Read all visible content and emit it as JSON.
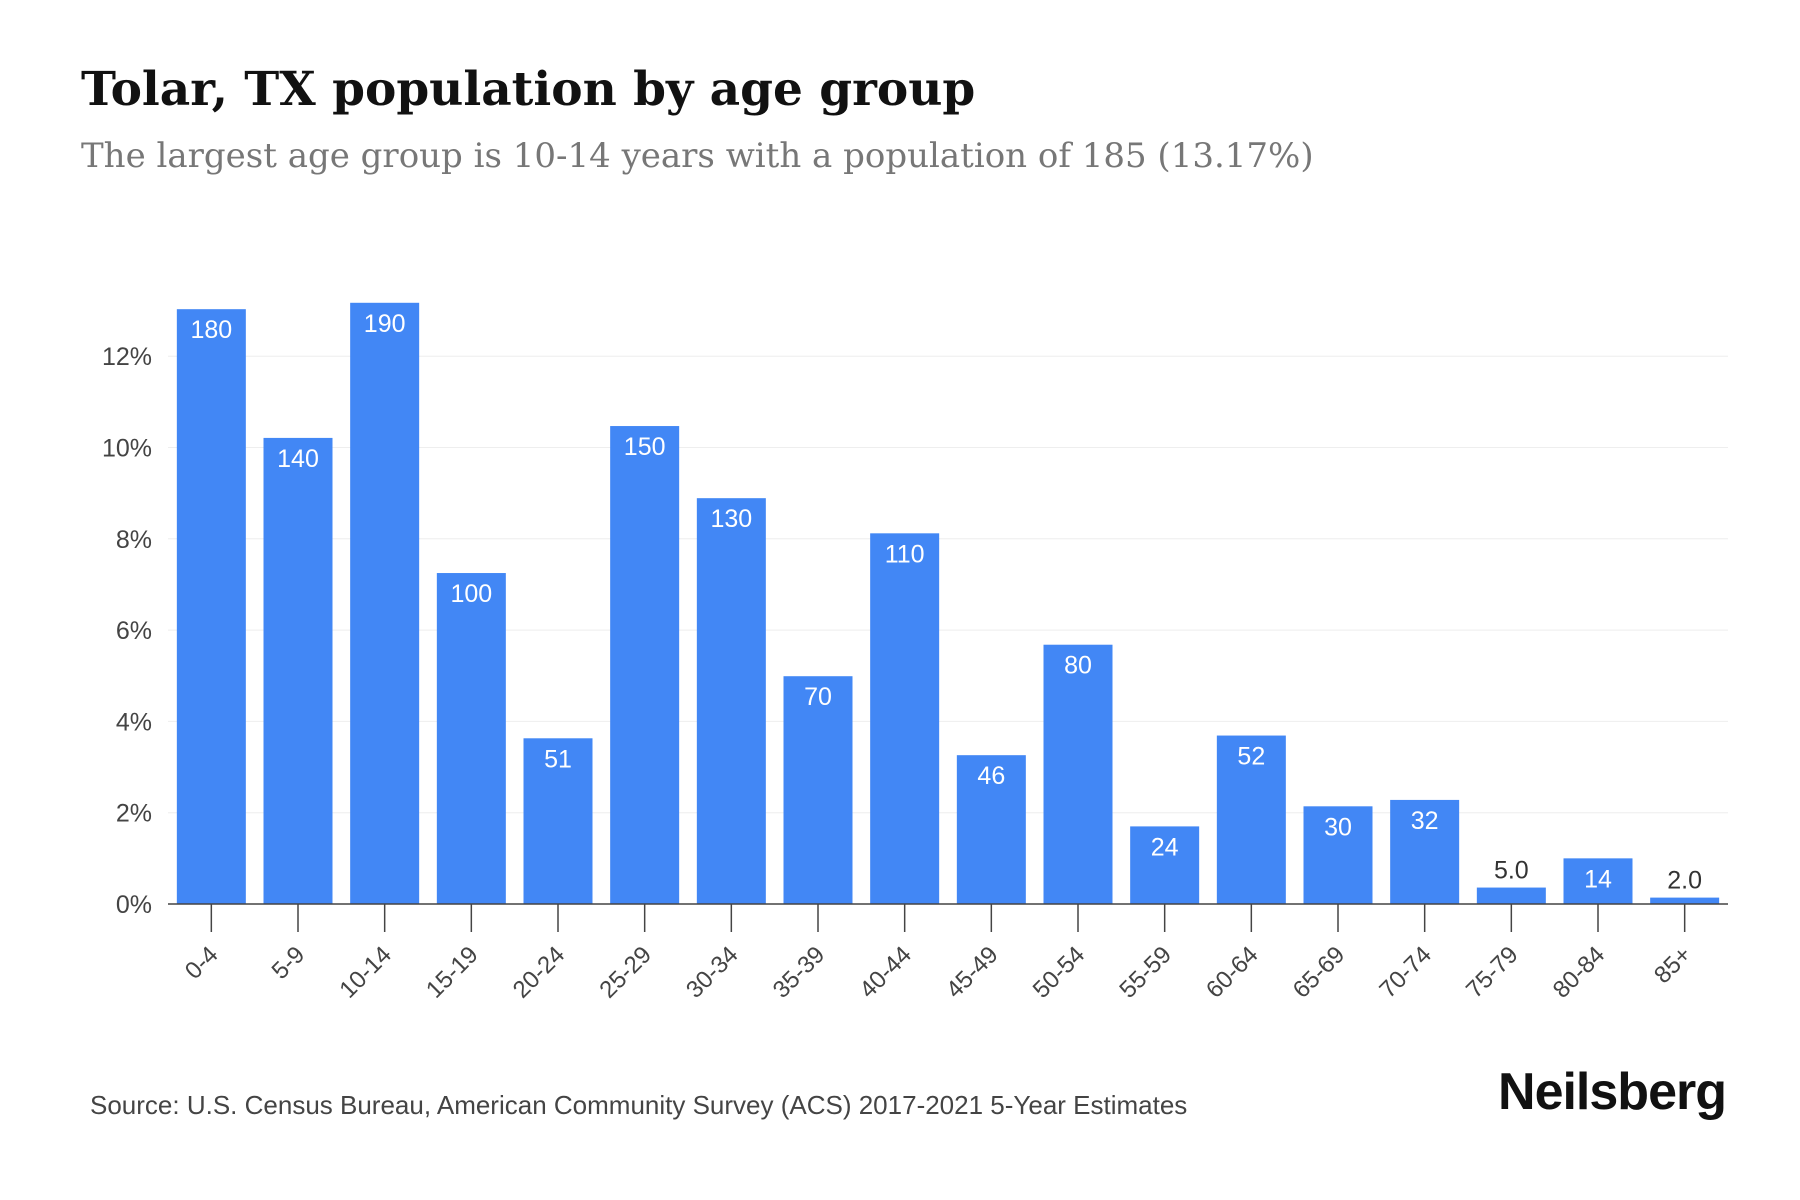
{
  "title": "Tolar, TX population by age group",
  "subtitle": "The largest age group is 10-14 years with a population of 185 (13.17%)",
  "source": "Source: U.S. Census Bureau, American Community Survey (ACS) 2017-2021 5-Year Estimates",
  "brand": "Neilsberg",
  "colors": {
    "bar": "#4287f5",
    "grid": "#eeeeee",
    "axis": "#444444",
    "label_inside": "#ffffff",
    "label_outside": "#333333"
  },
  "chart_data": {
    "type": "bar",
    "categories": [
      "0-4",
      "5-9",
      "10-14",
      "15-19",
      "20-24",
      "25-29",
      "30-34",
      "35-39",
      "40-44",
      "45-49",
      "50-54",
      "55-59",
      "60-64",
      "65-69",
      "70-74",
      "75-79",
      "80-84",
      "85+"
    ],
    "values": [
      13.03,
      10.21,
      13.17,
      7.25,
      3.63,
      10.47,
      8.89,
      4.99,
      8.12,
      3.26,
      5.68,
      1.7,
      3.69,
      2.14,
      2.28,
      0.36,
      1.0,
      0.14
    ],
    "data_labels": [
      "180",
      "140",
      "190",
      "100",
      "51",
      "150",
      "130",
      "70",
      "110",
      "46",
      "80",
      "24",
      "52",
      "30",
      "32",
      "5.0",
      "14",
      "2.0"
    ],
    "yticks": [
      0,
      2,
      4,
      6,
      8,
      10,
      12
    ],
    "ytick_labels": [
      "0%",
      "2%",
      "4%",
      "6%",
      "8%",
      "10%",
      "12%"
    ],
    "ylim": [
      0,
      13.6
    ],
    "xlabel": "",
    "ylabel": "",
    "grid": true
  }
}
